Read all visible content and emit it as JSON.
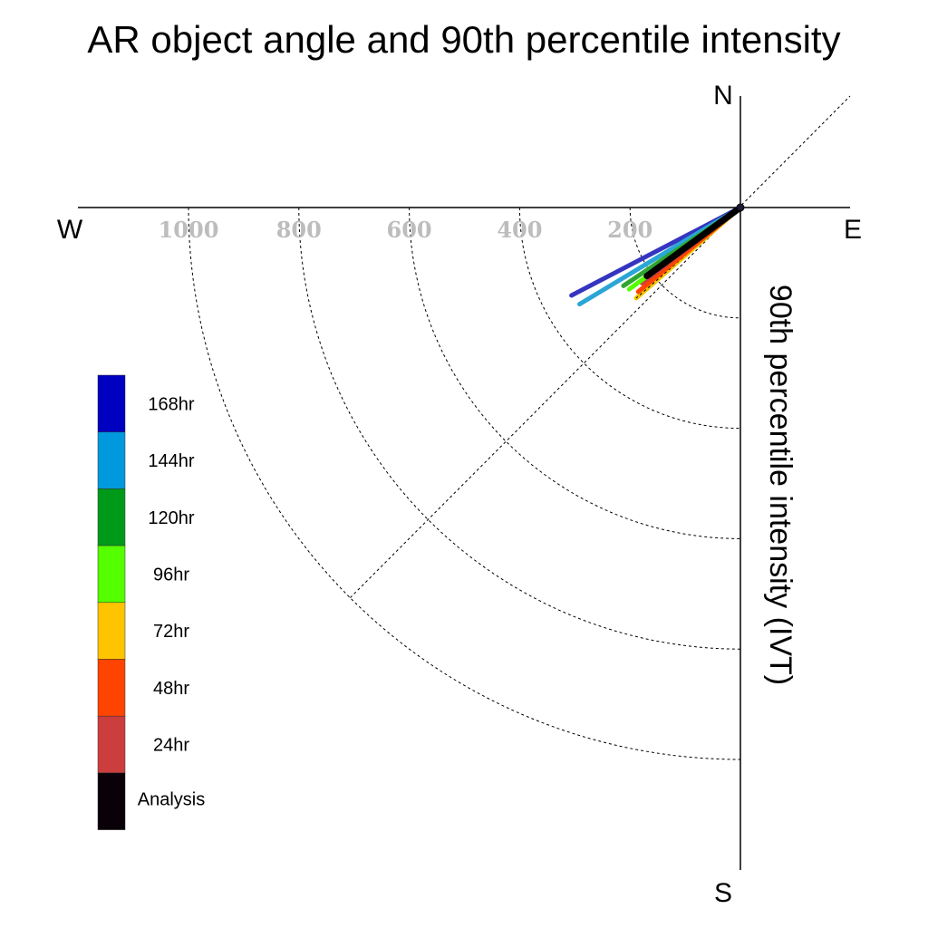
{
  "chart_data": {
    "type": "line",
    "title": "AR object angle and 90th percentile intensity",
    "ylabel": "90th percentile intensity (IVT)",
    "compass": {
      "north": "N",
      "south": "S",
      "east": "E",
      "west": "W"
    },
    "radial_ticks": [
      "200",
      "400",
      "600",
      "800",
      "1000"
    ],
    "radial_tick_values": [
      200,
      400,
      600,
      800,
      1000
    ],
    "rmax": 1000,
    "grid": true,
    "legend_placement": "left",
    "legend": [
      {
        "name": "168hr",
        "color": "#0000c0"
      },
      {
        "name": "144hr",
        "color": "#0099dd"
      },
      {
        "name": "120hr",
        "color": "#009a1a"
      },
      {
        "name": "96hr",
        "color": "#55ff00"
      },
      {
        "name": "72hr",
        "color": "#ffc400"
      },
      {
        "name": "48hr",
        "color": "#ff4400"
      },
      {
        "name": "24hr",
        "color": "#cc3d3d"
      },
      {
        "name": "Analysis",
        "color": "#0a0008"
      }
    ],
    "series": [
      {
        "name": "168hr",
        "color": "#3535c0",
        "angle_deg": -27.5,
        "intensity": 345
      },
      {
        "name": "144hr",
        "color": "#2aa6d6",
        "angle_deg": -31.0,
        "intensity": 340
      },
      {
        "name": "72hr",
        "color": "#f2c400",
        "angle_deg": -41.0,
        "intensity": 250
      },
      {
        "name": "48hr",
        "color": "#ff4400",
        "angle_deg": -39.5,
        "intensity": 240
      },
      {
        "name": "24hr",
        "color": "#cc3d3d",
        "angle_deg": -37.5,
        "intensity": 225
      },
      {
        "name": "96hr",
        "color": "#55ff00",
        "angle_deg": -36.3,
        "intensity": 250
      },
      {
        "name": "120hr",
        "color": "#2ea62e",
        "angle_deg": -33.8,
        "intensity": 255
      },
      {
        "name": "Analysis",
        "color": "#000000",
        "angle_deg": -36.2,
        "intensity": 210
      }
    ]
  }
}
